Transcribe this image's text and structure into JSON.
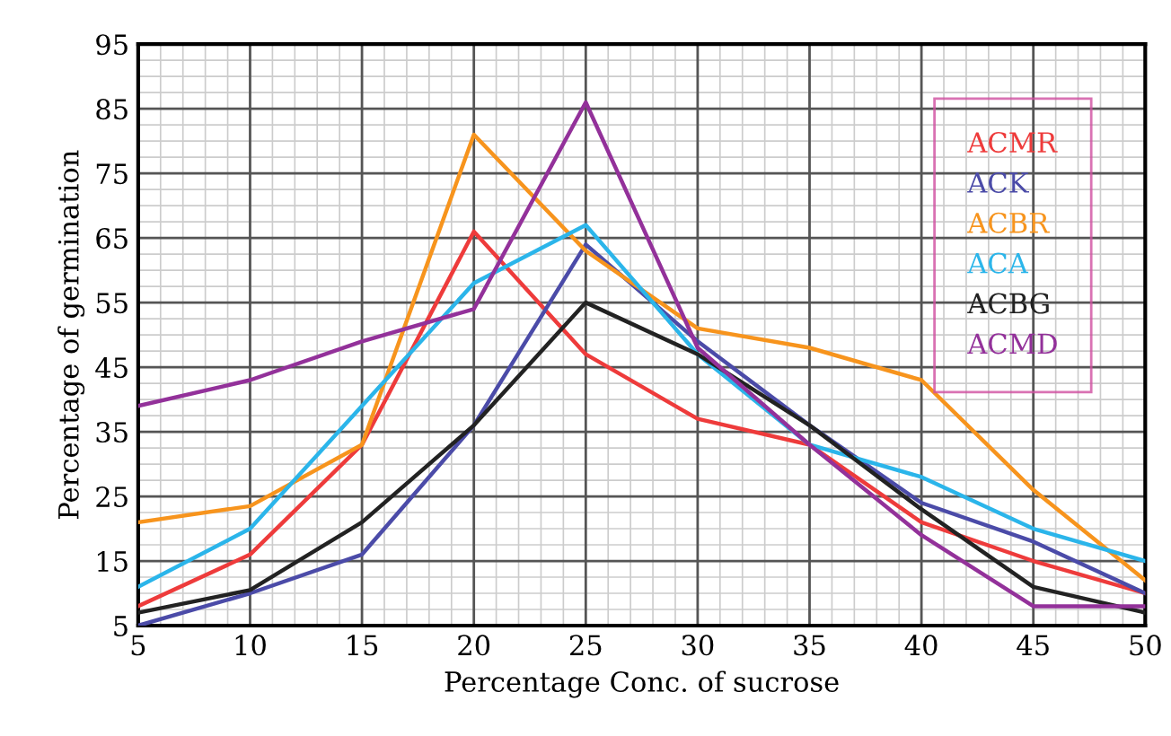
{
  "chart_data": {
    "type": "line",
    "xlabel": "Percentage Conc. of sucrose",
    "ylabel": "Percentage of germination",
    "x": [
      5,
      10,
      15,
      20,
      25,
      30,
      35,
      40,
      45,
      50
    ],
    "xlim": [
      5,
      50
    ],
    "xticks": [
      5,
      10,
      15,
      20,
      25,
      30,
      35,
      40,
      45,
      50
    ],
    "ylim": [
      5,
      95
    ],
    "yticks": [
      5,
      15,
      25,
      35,
      45,
      55,
      65,
      75,
      85,
      95
    ],
    "grid": true,
    "legend": "top right",
    "marker": "none",
    "line_style": "solid",
    "series": [
      {
        "name": "ACMR",
        "color": "#ee3b3b",
        "values": [
          8,
          16,
          33,
          66,
          47,
          37,
          33,
          21,
          15,
          10
        ]
      },
      {
        "name": "ACK",
        "color": "#4b4ba8",
        "values": [
          5,
          10,
          16,
          36,
          64,
          49,
          36,
          24,
          18,
          10
        ]
      },
      {
        "name": "ACBR",
        "color": "#f7941d",
        "values": [
          21,
          23.5,
          33,
          81,
          63,
          51,
          48,
          43,
          26,
          12
        ]
      },
      {
        "name": "ACA",
        "color": "#2bb5ea",
        "values": [
          11,
          20,
          39,
          58,
          67,
          47,
          33,
          28,
          20,
          15
        ]
      },
      {
        "name": "ACBG",
        "color": "#222222",
        "values": [
          7,
          10.5,
          21,
          36,
          55,
          47,
          36,
          23,
          11,
          7
        ]
      },
      {
        "name": "ACMD",
        "color": "#93319a",
        "values": [
          39,
          43,
          49,
          54,
          86,
          48,
          33,
          19,
          8,
          8
        ]
      }
    ]
  }
}
